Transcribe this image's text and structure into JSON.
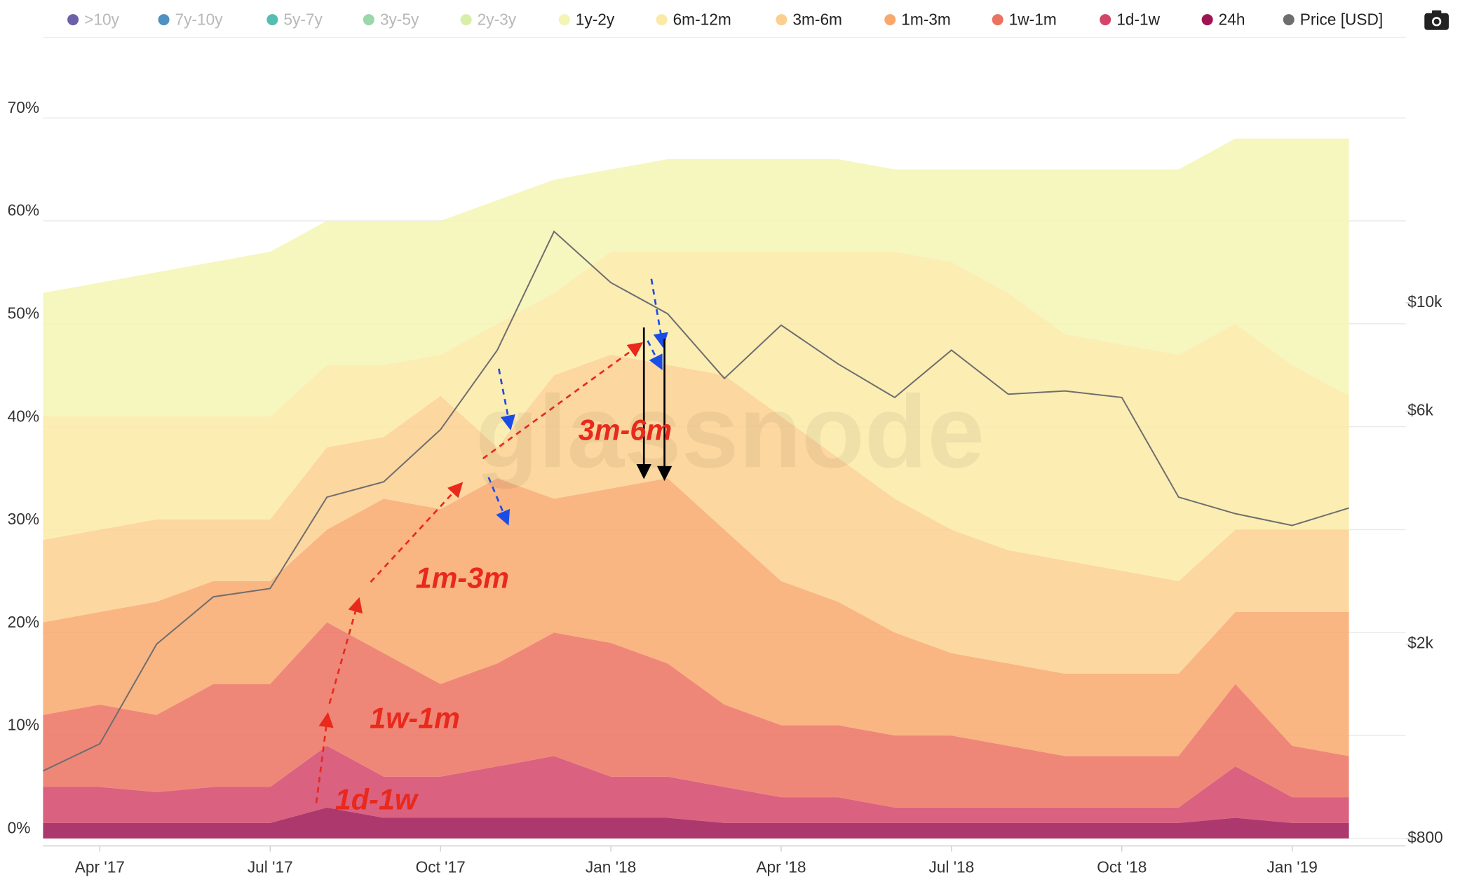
{
  "chart_data": {
    "type": "stacked-area",
    "watermark": "glassnode",
    "x": [
      "2017-03",
      "2017-04",
      "2017-05",
      "2017-06",
      "2017-07",
      "2017-08",
      "2017-09",
      "2017-10",
      "2017-11",
      "2017-12",
      "2018-01",
      "2018-02",
      "2018-03",
      "2018-04",
      "2018-05",
      "2018-06",
      "2018-07",
      "2018-08",
      "2018-09",
      "2018-10",
      "2018-11",
      "2018-12",
      "2019-01",
      "2019-02"
    ],
    "xlim": [
      "2017-03",
      "2019-03"
    ],
    "xticks": [
      {
        "value": "2017-04",
        "label": "Apr '17"
      },
      {
        "value": "2017-07",
        "label": "Jul '17"
      },
      {
        "value": "2017-10",
        "label": "Oct '17"
      },
      {
        "value": "2018-01",
        "label": "Jan '18"
      },
      {
        "value": "2018-04",
        "label": "Apr '18"
      },
      {
        "value": "2018-07",
        "label": "Jul '18"
      },
      {
        "value": "2018-10",
        "label": "Oct '18"
      },
      {
        "value": "2019-01",
        "label": "Jan '19"
      }
    ],
    "ylim": [
      0,
      76
    ],
    "yticks": [
      {
        "value": 0,
        "label": "0%"
      },
      {
        "value": 10,
        "label": "10%"
      },
      {
        "value": 20,
        "label": "20%"
      },
      {
        "value": 30,
        "label": "30%"
      },
      {
        "value": 40,
        "label": "40%"
      },
      {
        "value": 50,
        "label": "50%"
      },
      {
        "value": 60,
        "label": "60%"
      },
      {
        "value": 70,
        "label": "70%"
      }
    ],
    "y2scale": "log",
    "y2lim": [
      800,
      32000
    ],
    "y2ticks": [
      {
        "value": 800,
        "label": "$800"
      },
      {
        "value": 2000,
        "label": "$2k"
      },
      {
        "value": 6000,
        "label": "$6k"
      },
      {
        "value": 10000,
        "label": "$10k"
      }
    ],
    "grid": true,
    "legend": "top",
    "series": [
      {
        "name": ">10y",
        "color": "#5c4fa0",
        "visible": false
      },
      {
        "name": "7y-10y",
        "color": "#3a86bd",
        "visible": false
      },
      {
        "name": "5y-7y",
        "color": "#45b5a8",
        "visible": false
      },
      {
        "name": "3y-5y",
        "color": "#8fd3a2",
        "visible": false
      },
      {
        "name": "2y-3y",
        "color": "#d3eda0",
        "visible": false
      },
      {
        "name": "1y-2y",
        "color": "#f4f4b4",
        "values": [
          12,
          13,
          14,
          15,
          16,
          14,
          14,
          13,
          12,
          11,
          8,
          9,
          9,
          9,
          9,
          8,
          9,
          12,
          16,
          17,
          18,
          18,
          22,
          25
        ]
      },
      {
        "name": "6m-12m",
        "color": "#fbeaa6",
        "values": [
          12,
          11,
          10,
          10,
          10,
          8,
          7,
          4,
          12,
          8,
          10,
          11,
          12,
          16,
          20,
          24,
          26,
          25,
          22,
          22,
          22,
          20,
          16,
          13
        ]
      },
      {
        "name": "3m-6m",
        "color": "#fbd08e",
        "values": [
          8,
          8,
          8,
          6,
          6,
          8,
          6,
          11,
          3,
          12,
          13,
          11,
          15,
          16,
          14,
          13,
          12,
          11,
          11,
          10,
          9,
          8,
          8,
          8
        ]
      },
      {
        "name": "1m-3m",
        "color": "#f8a86c",
        "values": [
          9,
          9,
          11,
          10,
          10,
          9,
          15,
          17,
          18,
          13,
          15,
          18,
          17,
          14,
          12,
          10,
          8,
          8,
          8,
          8,
          8,
          7,
          13,
          14
        ]
      },
      {
        "name": "1w-1m",
        "color": "#ec7260",
        "values": [
          7,
          8,
          7.5,
          10,
          10,
          12,
          12,
          9,
          10,
          12,
          13,
          11,
          8,
          7,
          7,
          7,
          7,
          6,
          5,
          5,
          5,
          8,
          5,
          4
        ]
      },
      {
        "name": "1d-1w",
        "color": "#d4456a",
        "values": [
          3.5,
          3.5,
          3,
          3.5,
          3.5,
          6,
          4,
          4,
          5,
          6,
          4,
          4,
          3.5,
          2.5,
          2.5,
          1.5,
          1.5,
          1.5,
          1.5,
          1.5,
          1.5,
          5,
          2.5,
          2.5
        ]
      },
      {
        "name": "24h",
        "color": "#9e1554",
        "values": [
          1.5,
          1.5,
          1.5,
          1.5,
          1.5,
          3,
          2,
          2,
          2,
          2,
          2,
          2,
          1.5,
          1.5,
          1.5,
          1.5,
          1.5,
          1.5,
          1.5,
          1.5,
          1.5,
          2,
          1.5,
          1.5
        ]
      },
      {
        "name": "Price [USD]",
        "color": "#6e6e6e",
        "axis": "y2",
        "values": [
          1100,
          1250,
          2000,
          2500,
          2600,
          4000,
          4300,
          5500,
          8000,
          14000,
          11000,
          9500,
          7000,
          9000,
          7500,
          6400,
          8000,
          6500,
          6600,
          6400,
          4000,
          3700,
          3500,
          3800
        ]
      }
    ],
    "annotations": [
      "3m-6m",
      "1m-3m",
      "1w-1m",
      "1d-1w"
    ]
  }
}
